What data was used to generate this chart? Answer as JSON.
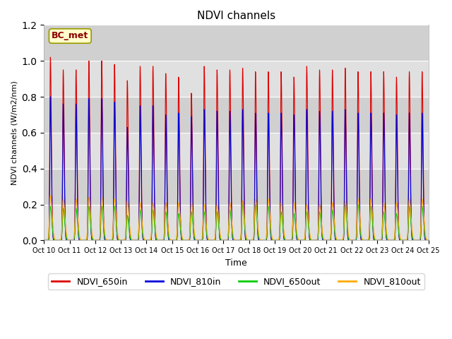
{
  "title": "NDVI channels",
  "xlabel": "Time",
  "ylabel": "NDVI channels (W/m2/nm)",
  "ylim": [
    0,
    1.2
  ],
  "annotation": "BC_met",
  "fig_bg_color": "#ffffff",
  "plot_bg_color": "#e8e8e8",
  "series": {
    "NDVI_650in": {
      "color": "#dd0000",
      "linewidth": 0.8
    },
    "NDVI_810in": {
      "color": "#0000dd",
      "linewidth": 0.8
    },
    "NDVI_650out": {
      "color": "#00cc00",
      "linewidth": 0.8
    },
    "NDVI_810out": {
      "color": "#ffaa00",
      "linewidth": 0.8
    }
  },
  "tick_labels": [
    "Oct 10",
    "Oct 11",
    "Oct 12",
    "Oct 13",
    "Oct 14",
    "Oct 15",
    "Oct 16",
    "Oct 17",
    "Oct 18",
    "Oct 19",
    "Oct 20",
    "Oct 21",
    "Oct 22",
    "Oct 23",
    "Oct 24",
    "Oct 25"
  ],
  "n_days": 15,
  "red_peaks": [
    1.02,
    0.95,
    0.95,
    1.0,
    1.0,
    0.98,
    0.89,
    0.97,
    0.97,
    0.93,
    0.91,
    0.82,
    0.97,
    0.95,
    0.95,
    0.96,
    0.94,
    0.94,
    0.94,
    0.91,
    0.97,
    0.95,
    0.95,
    0.96,
    0.94,
    0.94,
    0.94,
    0.91,
    0.94,
    0.94
  ],
  "blue_peaks": [
    0.8,
    0.76,
    0.76,
    0.79,
    0.79,
    0.77,
    0.63,
    0.75,
    0.75,
    0.7,
    0.71,
    0.69,
    0.73,
    0.72,
    0.72,
    0.73,
    0.71,
    0.71,
    0.71,
    0.7,
    0.73,
    0.72,
    0.72,
    0.73,
    0.71,
    0.71,
    0.71,
    0.7,
    0.71,
    0.71
  ],
  "green_peaks": [
    0.19,
    0.18,
    0.18,
    0.19,
    0.19,
    0.19,
    0.14,
    0.17,
    0.17,
    0.16,
    0.15,
    0.16,
    0.16,
    0.16,
    0.17,
    0.2,
    0.2,
    0.19,
    0.16,
    0.15,
    0.16,
    0.16,
    0.17,
    0.2,
    0.2,
    0.19,
    0.16,
    0.15,
    0.19,
    0.19
  ],
  "orange_peaks": [
    0.25,
    0.23,
    0.23,
    0.24,
    0.24,
    0.23,
    0.22,
    0.21,
    0.21,
    0.21,
    0.21,
    0.21,
    0.2,
    0.2,
    0.21,
    0.22,
    0.23,
    0.23,
    0.21,
    0.21,
    0.2,
    0.2,
    0.21,
    0.22,
    0.23,
    0.23,
    0.21,
    0.21,
    0.23,
    0.23
  ],
  "grid_colors": [
    "#d8d8d8",
    "#c8c8c8"
  ],
  "yticks": [
    0.0,
    0.2,
    0.4,
    0.6,
    0.8,
    1.0,
    1.2
  ]
}
